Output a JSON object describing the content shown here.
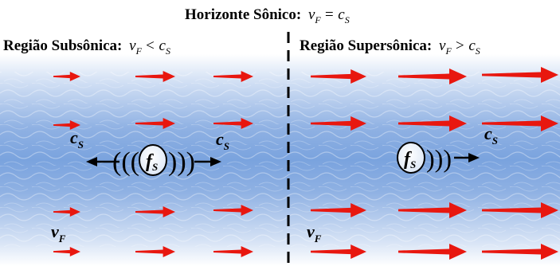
{
  "header": {
    "title_main": "Horizonte Sônico:",
    "title_v": "v",
    "title_v_sub": "F",
    "title_eq": "= c",
    "title_c_sub": "S"
  },
  "left": {
    "label_main": "Região Subsônica:",
    "v": "v",
    "v_sub": "F",
    "rel": "< c",
    "c_sub": "S",
    "cs_left": "c",
    "cs_left_sub": "S",
    "cs_right": "c",
    "cs_right_sub": "S",
    "source": "f",
    "source_sub": "S",
    "vf": "v",
    "vf_sub": "F"
  },
  "right": {
    "label_main": "Região Supersônica:",
    "v": "v",
    "v_sub": "F",
    "rel": "> c",
    "c_sub": "S",
    "cs": "c",
    "cs_sub": "S",
    "source": "f",
    "source_sub": "S",
    "vf": "v",
    "vf_sub": "F"
  },
  "colors": {
    "arrow": "#e8170f",
    "water_edge": "#ffffff",
    "water_core": "#7aa3de",
    "divider": "#000000"
  },
  "icons": {
    "flow_arrow": "red-arrow-icon",
    "source": "circle-source-icon"
  }
}
